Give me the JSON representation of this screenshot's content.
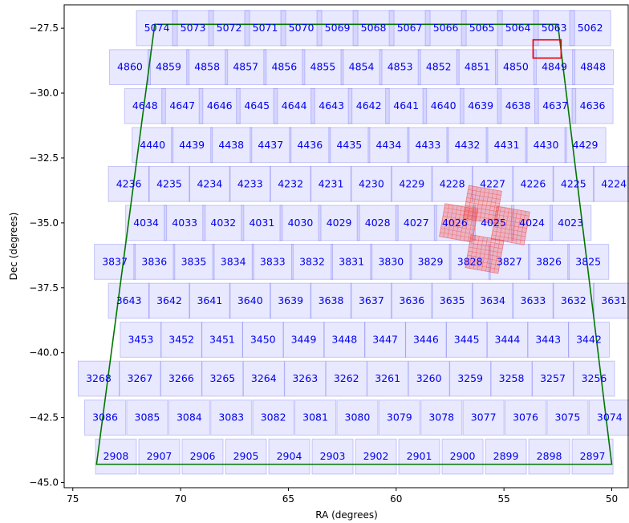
{
  "chart_data": {
    "type": "scatter",
    "xlabel": "RA (degrees)",
    "ylabel": "Dec (degrees)",
    "xlim": [
      75.4,
      49.2
    ],
    "ylim": [
      -45.2,
      -26.6
    ],
    "x_ticks": [
      75,
      70,
      65,
      60,
      55,
      50
    ],
    "y_ticks": [
      -27.5,
      -30.0,
      -32.5,
      -35.0,
      -37.5,
      -40.0,
      -42.5,
      -45.0
    ],
    "x_tick_labels": [
      "75",
      "70",
      "65",
      "60",
      "55",
      "50"
    ],
    "y_tick_labels": [
      "−27.5",
      "−30.0",
      "−32.5",
      "−35.0",
      "−37.5",
      "−40.0",
      "−42.5",
      "−45.0"
    ],
    "tile_size_deg": [
      1.9,
      1.35
    ],
    "rows": [
      {
        "dec": -27.5,
        "start_ra": 71.1,
        "step": 1.675,
        "ids": [
          "5074",
          "5073",
          "5072",
          "5071",
          "5070",
          "5069",
          "5068",
          "5067",
          "5066",
          "5065",
          "5064",
          "5063",
          "5062"
        ]
      },
      {
        "dec": -29.0,
        "start_ra": 72.35,
        "step": 1.79,
        "ids": [
          "4860",
          "4859",
          "4858",
          "4857",
          "4856",
          "4855",
          "4854",
          "4853",
          "4852",
          "4851",
          "4850",
          "4849",
          "4848"
        ]
      },
      {
        "dec": -30.5,
        "start_ra": 71.65,
        "step": 1.73,
        "ids": [
          "4648",
          "4647",
          "4646",
          "4645",
          "4644",
          "4643",
          "4642",
          "4641",
          "4640",
          "4639",
          "4638",
          "4637",
          "4636"
        ]
      },
      {
        "dec": -32.0,
        "start_ra": 71.3,
        "step": 1.825,
        "ids": [
          "4440",
          "4439",
          "4438",
          "4437",
          "4436",
          "4435",
          "4434",
          "4433",
          "4432",
          "4431",
          "4430",
          "4429"
        ]
      },
      {
        "dec": -33.5,
        "start_ra": 72.4,
        "step": 1.875,
        "ids": [
          "4236",
          "4235",
          "4234",
          "4233",
          "4232",
          "4231",
          "4230",
          "4229",
          "4228",
          "4227",
          "4226",
          "4225",
          "4224"
        ]
      },
      {
        "dec": -35.0,
        "start_ra": 71.6,
        "step": 1.79,
        "ids": [
          "4034",
          "4033",
          "4032",
          "4031",
          "4030",
          "4029",
          "4028",
          "4027",
          "4026",
          "4025",
          "4024",
          "4023"
        ]
      },
      {
        "dec": -36.5,
        "start_ra": 73.05,
        "step": 1.83,
        "ids": [
          "3837",
          "3836",
          "3835",
          "3834",
          "3833",
          "3832",
          "3831",
          "3830",
          "3829",
          "3828",
          "3827",
          "3826",
          "3825"
        ]
      },
      {
        "dec": -38.0,
        "start_ra": 72.4,
        "step": 1.875,
        "ids": [
          "3643",
          "3642",
          "3641",
          "3640",
          "3639",
          "3638",
          "3637",
          "3636",
          "3635",
          "3634",
          "3633",
          "3632",
          "3631"
        ]
      },
      {
        "dec": -39.5,
        "start_ra": 71.85,
        "step": 1.89,
        "ids": [
          "3453",
          "3452",
          "3451",
          "3450",
          "3449",
          "3448",
          "3447",
          "3446",
          "3445",
          "3444",
          "3443",
          "3442"
        ]
      },
      {
        "dec": -41.0,
        "start_ra": 73.8,
        "step": 1.915,
        "ids": [
          "3268",
          "3267",
          "3266",
          "3265",
          "3264",
          "3263",
          "3262",
          "3261",
          "3260",
          "3259",
          "3258",
          "3257",
          "3256"
        ]
      },
      {
        "dec": -42.5,
        "start_ra": 73.5,
        "step": 1.95,
        "ids": [
          "3086",
          "3085",
          "3084",
          "3083",
          "3082",
          "3081",
          "3080",
          "3079",
          "3078",
          "3077",
          "3076",
          "3075",
          "3074"
        ]
      },
      {
        "dec": -44.0,
        "start_ra": 73.0,
        "step": 2.01,
        "ids": [
          "2908",
          "2907",
          "2906",
          "2905",
          "2904",
          "2903",
          "2902",
          "2901",
          "2900",
          "2899",
          "2898",
          "2897"
        ]
      }
    ],
    "outline_polygon": [
      [
        71.2,
        -27.35
      ],
      [
        52.5,
        -27.35
      ],
      [
        50.0,
        -44.3
      ],
      [
        73.9,
        -44.3
      ]
    ],
    "outline_color": "#007700",
    "highlight_box": {
      "ra": [
        53.65,
        52.35
      ],
      "dec": [
        -27.95,
        -28.65
      ],
      "color": "#ee0000"
    },
    "mosaic": {
      "color": "#ee4444",
      "tiles": [
        {
          "ra": 57.1,
          "dec": -35.0,
          "angle": 10
        },
        {
          "ra": 56.0,
          "dec": -34.3,
          "angle": 10
        },
        {
          "ra": 54.7,
          "dec": -35.1,
          "angle": 10
        },
        {
          "ra": 55.9,
          "dec": -36.2,
          "angle": 10
        }
      ]
    }
  }
}
